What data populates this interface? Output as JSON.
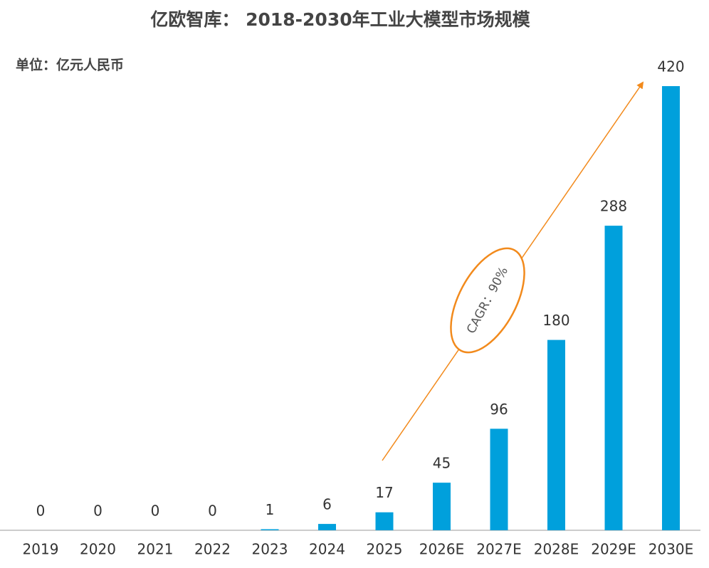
{
  "chart_data": {
    "type": "bar",
    "title": "亿欧智库： 2018-2030年工业大模型市场规模",
    "subtitle": "单位：亿元人民币",
    "annotation": "CAGR：90%",
    "categories": [
      "2019",
      "2020",
      "2021",
      "2022",
      "2023",
      "2024",
      "2025",
      "2026E",
      "2027E",
      "2028E",
      "2029E",
      "2030E"
    ],
    "values": [
      0,
      0,
      0,
      0,
      1,
      6,
      17,
      45,
      96,
      180,
      288,
      420
    ],
    "color": "#00a0dc"
  }
}
